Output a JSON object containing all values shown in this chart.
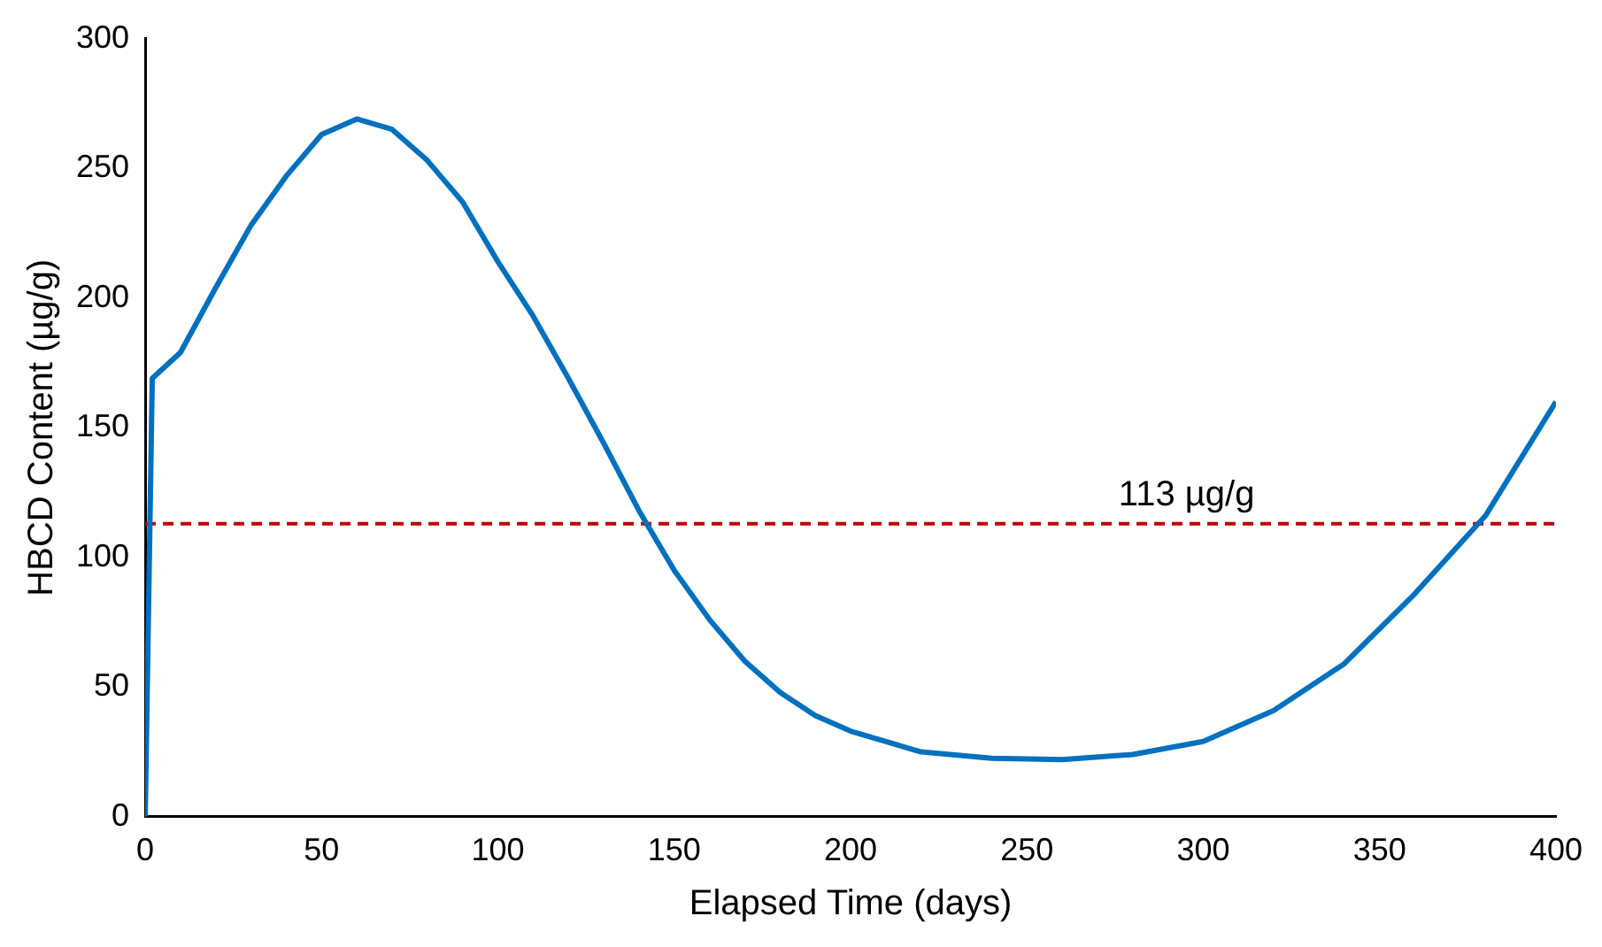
{
  "chart_data": {
    "type": "line",
    "xlabel": "Elapsed Time (days)",
    "ylabel": "HBCD Content (µg/g)",
    "xlim": [
      0,
      400
    ],
    "xticks": [
      0,
      50,
      100,
      150,
      200,
      250,
      300,
      350,
      400
    ],
    "ylim": [
      0,
      300
    ],
    "yticks": [
      0,
      50,
      100,
      150,
      200,
      250,
      300
    ],
    "grid": false,
    "legend": false,
    "marker": "none",
    "line_style": "solid",
    "series": [
      {
        "color": "#0070c0",
        "x": [
          0,
          2,
          10,
          20,
          30,
          40,
          50,
          60,
          70,
          80,
          90,
          100,
          110,
          120,
          130,
          140,
          150,
          160,
          170,
          180,
          190,
          200,
          220,
          240,
          260,
          280,
          300,
          320,
          340,
          360,
          380,
          400
        ],
        "values": [
          0,
          169,
          179,
          204,
          228,
          247,
          263,
          269,
          265,
          253,
          237,
          214,
          193,
          169,
          144,
          118,
          95,
          76,
          60,
          48,
          39,
          33,
          25,
          22.5,
          22,
          24,
          29,
          41,
          59,
          86,
          116,
          160
        ]
      }
    ],
    "ref_lines": [
      {
        "axis": "y",
        "value": 113,
        "label": "113 µg/g",
        "color": "#c00000",
        "line_style": "dashed"
      }
    ]
  }
}
